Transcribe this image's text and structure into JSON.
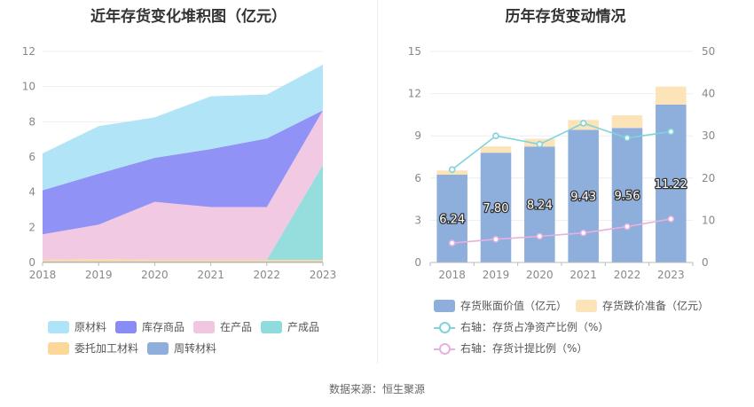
{
  "source": "数据来源：恒生聚源",
  "colors": {
    "raw": "#aee3f8",
    "goods": "#8a8cf6",
    "wip": "#f1c6e0",
    "finished": "#90dcdc",
    "consign": "#fbd79a",
    "turnover": "#8eaedb",
    "book": "#8eaedb",
    "impair": "#fde3b8",
    "ratio1": "#7fd3dd",
    "ratio2": "#e6b1de"
  },
  "chart_data": [
    {
      "type": "area",
      "title": "近年存货变化堆积图（亿元）",
      "x": [
        "2018",
        "2019",
        "2020",
        "2021",
        "2022",
        "2023"
      ],
      "ylim": [
        0,
        12
      ],
      "yticks": [
        "0",
        "2",
        "4",
        "6",
        "8",
        "10",
        "12"
      ],
      "stacked": true,
      "series": [
        {
          "name": "原材料",
          "color_key": "raw",
          "values": [
            2.1,
            2.7,
            2.3,
            3.0,
            2.5,
            2.6
          ]
        },
        {
          "name": "库存商品",
          "color_key": "goods",
          "values": [
            2.5,
            2.9,
            2.5,
            3.3,
            3.9,
            0.0
          ]
        },
        {
          "name": "在产品",
          "color_key": "wip",
          "values": [
            1.45,
            1.95,
            3.3,
            3.0,
            3.0,
            3.1
          ]
        },
        {
          "name": "产成品",
          "color_key": "finished",
          "values": [
            0.0,
            0.0,
            0.0,
            0.0,
            0.0,
            5.4
          ]
        },
        {
          "name": "委托加工材料",
          "color_key": "consign",
          "values": [
            0.1,
            0.15,
            0.1,
            0.1,
            0.1,
            0.1
          ]
        },
        {
          "name": "周转材料",
          "color_key": "turnover",
          "values": [
            0.05,
            0.05,
            0.05,
            0.05,
            0.05,
            0.05
          ]
        }
      ],
      "legend_position": "bottom"
    },
    {
      "type": "bar",
      "title": "历年存货变动情况",
      "categories": [
        "2018",
        "2019",
        "2020",
        "2021",
        "2022",
        "2023"
      ],
      "ylim": [
        0,
        15
      ],
      "yticks": [
        "0",
        "3",
        "6",
        "9",
        "12",
        "15"
      ],
      "y2lim": [
        0,
        50
      ],
      "y2ticks": [
        "0",
        "10",
        "20",
        "30",
        "40",
        "50"
      ],
      "stacked": true,
      "bar_series": [
        {
          "name": "存货账面价值（亿元）",
          "color_key": "book",
          "values": [
            6.24,
            7.8,
            8.24,
            9.43,
            9.56,
            11.22
          ],
          "labels": [
            "6.24",
            "7.80",
            "8.24",
            "9.43",
            "9.56",
            "11.22"
          ]
        },
        {
          "name": "存货跌价准备（亿元）",
          "color_key": "impair",
          "values": [
            0.3,
            0.45,
            0.55,
            0.7,
            0.9,
            1.28
          ]
        }
      ],
      "line_series": [
        {
          "name": "右轴：存货占净资产比例（%）",
          "color_key": "ratio1",
          "values": [
            22,
            30,
            28,
            33,
            29.5,
            31
          ]
        },
        {
          "name": "右轴：存货计提比例（%）",
          "color_key": "ratio2",
          "values": [
            4.6,
            5.5,
            6.2,
            7.0,
            8.5,
            10.3
          ]
        }
      ],
      "legend_position": "bottom"
    }
  ]
}
